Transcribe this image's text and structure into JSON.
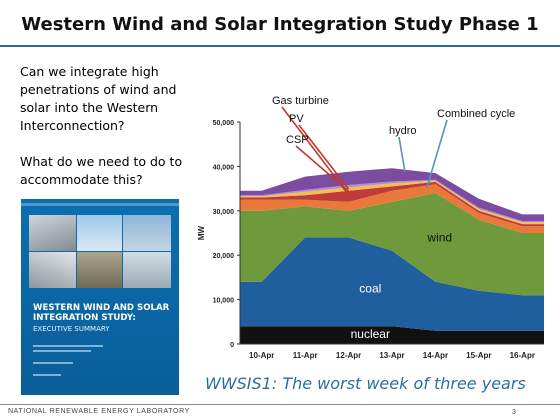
{
  "slide": {
    "title": "Western Wind and Solar Integration Study Phase 1",
    "bullets": [
      "Can we integrate high penetrations of wind and solar into the Western Interconnection?",
      "What do we need to do to accommodate this?"
    ],
    "caption": "WWSIS1: The worst week of three years",
    "footer": "NATIONAL RENEWABLE ENERGY LABORATORY",
    "page_number": "3"
  },
  "report_cover": {
    "title_line1": "WESTERN WIND AND SOLAR",
    "title_line2": "INTEGRATION STUDY:",
    "subtitle": "EXECUTIVE SUMMARY",
    "background_color": "#0b6fb0"
  },
  "chart_data": {
    "type": "area",
    "stacked": true,
    "ylabel": "MW",
    "ylim": [
      0,
      50000
    ],
    "yticks": [
      "0",
      "10,000",
      "20,000",
      "30,000",
      "40,000",
      "50,000"
    ],
    "x": [
      "10-Apr",
      "11-Apr",
      "12-Apr",
      "13-Apr",
      "14-Apr",
      "15-Apr",
      "16-Apr"
    ],
    "series": [
      {
        "name": "nuclear",
        "color": "#111111",
        "values": [
          4000,
          4000,
          4000,
          4000,
          3000,
          3000,
          3000
        ]
      },
      {
        "name": "coal",
        "color": "#1f5f9e",
        "values": [
          10000,
          20000,
          20000,
          17000,
          11000,
          9000,
          8000
        ]
      },
      {
        "name": "wind",
        "color": "#6f9a3c",
        "values": [
          16000,
          7000,
          6000,
          11000,
          20000,
          16000,
          14000
        ]
      },
      {
        "name": "Combined cycle",
        "color": "#e8793a",
        "values": [
          2500,
          1500,
          2000,
          2500,
          2000,
          1500,
          1500
        ]
      },
      {
        "name": "Gas turbine",
        "color": "#c23b3b",
        "values": [
          500,
          1000,
          2500,
          1000,
          500,
          500,
          500
        ]
      },
      {
        "name": "CSP",
        "color": "#f2c14e",
        "values": [
          300,
          800,
          800,
          700,
          300,
          400,
          400
        ]
      },
      {
        "name": "PV",
        "color": "#b58ad6",
        "values": [
          200,
          400,
          500,
          400,
          200,
          300,
          300
        ]
      },
      {
        "name": "hydro",
        "color": "#7b4ca0",
        "values": [
          1000,
          3000,
          3000,
          3000,
          1500,
          2000,
          1500
        ]
      }
    ]
  }
}
